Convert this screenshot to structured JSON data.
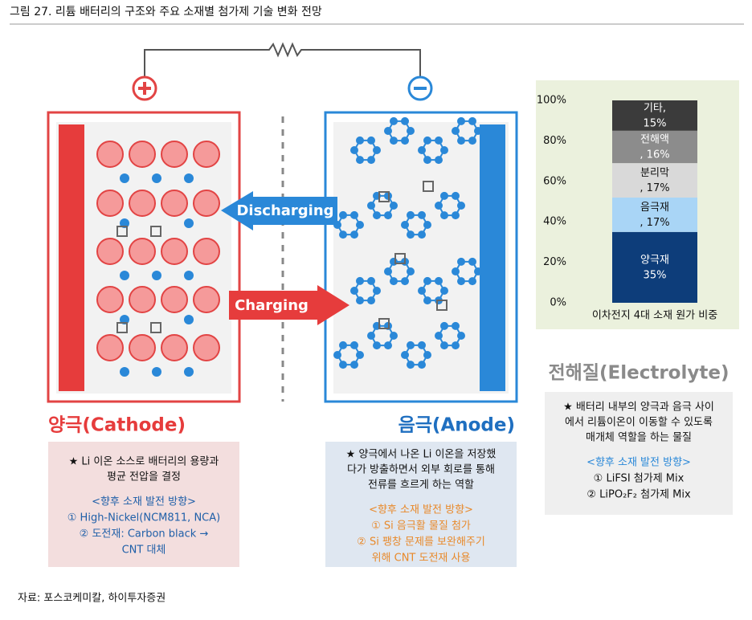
{
  "header": {
    "title": "그림 27. 리튬 배터리의 구조와 주요 소재별 첨가제 기술 변화 전망"
  },
  "diagram": {
    "discharging": "Discharging",
    "charging": "Charging"
  },
  "cathode": {
    "title": "양극(Cathode)",
    "desc": [
      "★ Li 이온 소스로 배터리의 용량과",
      "평균 전압을 결정"
    ],
    "outlook_title": "<향후 소재 발전 방향>",
    "outlook": [
      "① High-Nickel(NCM811, NCA)",
      "② 도전재: Carbon black →",
      "CNT 대체"
    ]
  },
  "anode": {
    "title": "음극(Anode)",
    "desc": [
      "★ 양극에서 나온 Li 이온을 저장했",
      "다가 방출하면서 외부 회로를 통해",
      "전류를 흐르게 하는 역할"
    ],
    "outlook_title": "<향후 소재 발전 방향>",
    "outlook": [
      "① Si 음극활 물질 첨가",
      "② Si 팽창 문제를 보완해주기",
      "위해 CNT 도전재 사용"
    ]
  },
  "electrolyte": {
    "title": "전해질(Electrolyte)",
    "desc": [
      "★ 배터리 내부의 양극과 음극 사이",
      "에서 리튬이온이 이동할 수 있도록",
      "매개체 역할을 하는 물질"
    ],
    "outlook_title": "<향후 소재 발전 방향>",
    "outlook": [
      "① LiFSI 첨가제 Mix",
      "② LiPO₂F₂ 첨가제 Mix"
    ]
  },
  "chart_data": {
    "type": "stacked-bar",
    "categories": [
      "이차전지 4대 소재 원가 비중"
    ],
    "series": [
      {
        "name": "양극재",
        "color": "#0d3d7a",
        "values": [
          35
        ],
        "value_labels": [
          "35%"
        ]
      },
      {
        "name": "음극재",
        "color": "#a9d5f6",
        "values": [
          17
        ],
        "value_labels": [
          ", 17%"
        ]
      },
      {
        "name": "분리막",
        "color": "#d9d9d9",
        "values": [
          17
        ],
        "value_labels": [
          ", 17%"
        ]
      },
      {
        "name": "전해액",
        "color": "#8c8c8c",
        "values": [
          16
        ],
        "value_labels": [
          ", 16%"
        ]
      },
      {
        "name": "기타,",
        "color": "#3b3b3b",
        "values": [
          15
        ],
        "value_labels": [
          "15%"
        ]
      }
    ],
    "ylim": [
      0,
      100
    ],
    "yticks": [
      {
        "value": 0,
        "label": "0%"
      },
      {
        "value": 20,
        "label": "20%"
      },
      {
        "value": 40,
        "label": "40%"
      },
      {
        "value": 60,
        "label": "60%"
      },
      {
        "value": 80,
        "label": "80%"
      },
      {
        "value": 100,
        "label": "100%"
      }
    ]
  },
  "source": "자료: 포스코케미칼, 하이투자증권"
}
